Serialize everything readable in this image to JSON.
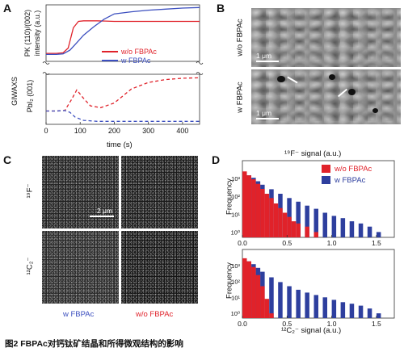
{
  "figure": {
    "caption": "图2 FBPAc对钙钛矿结晶和所得微观结构的影响"
  },
  "panel_letters": {
    "a": "A",
    "b": "B",
    "c": "C",
    "d": "D"
  },
  "panel_a": {
    "y_label_top": "PK (110)/(002)",
    "y_label_intensity": "intensity (a.u.)",
    "y_label_gi": "GIWAXS",
    "y_label_bottom": "PbI₂ (001)",
    "x_label": "time (s)",
    "x_ticks": [
      "0",
      "100",
      "200",
      "300",
      "400"
    ],
    "legend": [
      {
        "label": "w/o FBPAc",
        "color": "#e0222a"
      },
      {
        "label": "w FBPAc",
        "color": "#3c4fbf"
      }
    ]
  },
  "panel_b": {
    "top_label": "w/o FBPAc",
    "bottom_label": "w FBPAc",
    "scale_top": "1 μm",
    "scale_bottom": "1 μm"
  },
  "panel_c": {
    "row_top_label": "¹⁹F⁻",
    "row_bottom_label": "¹²C₂⁻",
    "scale": "2 μm",
    "col_left_label": "w FBPAc",
    "col_right_label": "w/o FBPAc",
    "col_left_color": "#3c4fbf",
    "col_right_color": "#e0222a"
  },
  "panel_d": {
    "top_title": "¹⁹F⁻ signal (a.u.)",
    "bottom_x_label": "¹²C₂⁻ signal (a.u.)",
    "y_label": "Frequency",
    "y_ticks": [
      "10³",
      "10²",
      "10¹",
      "10⁰"
    ],
    "x_ticks": [
      "0.0",
      "0.5",
      "1.0",
      "1.5"
    ],
    "legend": [
      {
        "label": "w/o FBPAc",
        "color": "#e0222a"
      },
      {
        "label": "w FBPAc",
        "color": "#2e3f9e"
      }
    ]
  },
  "chart_data": [
    {
      "type": "line",
      "panel": "A-top",
      "xlabel": "time (s)",
      "ylabel": "PK (110)/(002) intensity (a.u.)",
      "xlim": [
        0,
        450
      ],
      "series": [
        {
          "name": "w/o FBPAc",
          "color": "#e0222a",
          "style": "solid",
          "x": [
            0,
            30,
            50,
            65,
            80,
            95,
            110,
            150,
            200,
            300,
            450
          ],
          "y": [
            0.12,
            0.12,
            0.13,
            0.22,
            0.6,
            0.72,
            0.73,
            0.73,
            0.72,
            0.72,
            0.72
          ]
        },
        {
          "name": "w FBPAc",
          "color": "#3c4fbf",
          "style": "solid",
          "x": [
            0,
            30,
            50,
            70,
            90,
            110,
            140,
            170,
            200,
            250,
            300,
            350,
            400,
            450
          ],
          "y": [
            0.1,
            0.1,
            0.11,
            0.18,
            0.32,
            0.46,
            0.62,
            0.76,
            0.86,
            0.9,
            0.93,
            0.95,
            0.97,
            0.98
          ]
        }
      ]
    },
    {
      "type": "line",
      "panel": "A-bottom",
      "xlabel": "time (s)",
      "ylabel": "GIWAXS PbI2 (001)",
      "xlim": [
        0,
        450
      ],
      "series": [
        {
          "name": "w/o FBPAc",
          "color": "#e0222a",
          "style": "dashed",
          "x": [
            0,
            30,
            55,
            75,
            90,
            110,
            130,
            160,
            200,
            250,
            300,
            350,
            400,
            450
          ],
          "y": [
            0.25,
            0.25,
            0.26,
            0.5,
            0.7,
            0.52,
            0.36,
            0.32,
            0.42,
            0.72,
            0.86,
            0.92,
            0.95,
            0.96
          ]
        },
        {
          "name": "w FBPAc",
          "color": "#3c4fbf",
          "style": "dashed",
          "x": [
            0,
            30,
            55,
            70,
            85,
            110,
            150,
            200,
            300,
            450
          ],
          "y": [
            0.25,
            0.25,
            0.26,
            0.22,
            0.12,
            0.05,
            0.03,
            0.03,
            0.03,
            0.03
          ]
        }
      ]
    },
    {
      "type": "bar",
      "panel": "D-top",
      "xlabel": "¹⁹F⁻ signal (a.u.)",
      "ylabel": "Frequency",
      "log_y": true,
      "series": [
        {
          "name": "w/o FBPAc",
          "color": "#e0222a",
          "x": [
            0.0,
            0.05,
            0.1,
            0.15,
            0.2,
            0.25,
            0.3,
            0.35,
            0.4,
            0.45,
            0.5,
            0.55,
            0.6,
            0.7,
            0.8
          ],
          "y": [
            2500,
            1500,
            900,
            500,
            260,
            140,
            80,
            40,
            22,
            12,
            7,
            4,
            3,
            2,
            1
          ]
        },
        {
          "name": "w FBPAc",
          "color": "#2e3f9e",
          "x": [
            0.0,
            0.05,
            0.1,
            0.15,
            0.2,
            0.3,
            0.4,
            0.5,
            0.6,
            0.7,
            0.8,
            0.9,
            1.0,
            1.1,
            1.2,
            1.3,
            1.4,
            1.5
          ],
          "y": [
            1800,
            1500,
            1100,
            700,
            450,
            250,
            140,
            80,
            50,
            30,
            20,
            12,
            8,
            6,
            4,
            3,
            2,
            1
          ]
        }
      ]
    },
    {
      "type": "bar",
      "panel": "D-bottom",
      "xlabel": "¹²C₂⁻ signal (a.u.)",
      "ylabel": "Frequency",
      "log_y": true,
      "series": [
        {
          "name": "w/o FBPAc",
          "color": "#e0222a",
          "x": [
            0.0,
            0.05,
            0.1,
            0.15,
            0.2,
            0.25,
            0.3
          ],
          "y": [
            2800,
            1800,
            800,
            250,
            50,
            8,
            1
          ]
        },
        {
          "name": "w FBPAc",
          "color": "#2e3f9e",
          "x": [
            0.0,
            0.05,
            0.1,
            0.15,
            0.2,
            0.3,
            0.4,
            0.5,
            0.6,
            0.7,
            0.8,
            0.9,
            1.0,
            1.1,
            1.2,
            1.3,
            1.4,
            1.5
          ],
          "y": [
            2200,
            1800,
            1200,
            700,
            400,
            180,
            90,
            50,
            30,
            20,
            14,
            10,
            7,
            5,
            4,
            3,
            2,
            1
          ]
        }
      ]
    }
  ]
}
